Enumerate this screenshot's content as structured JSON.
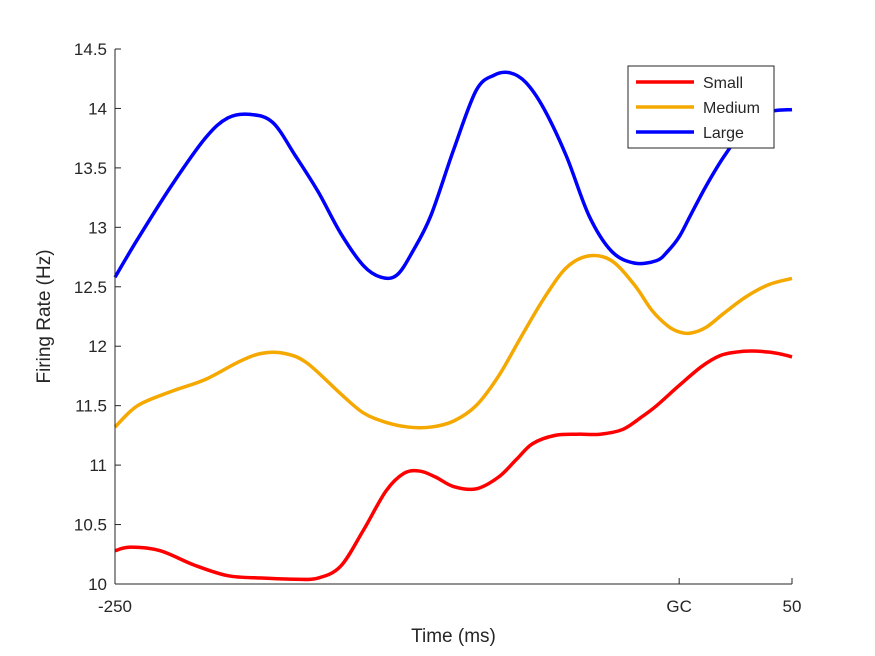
{
  "chart_data": {
    "type": "line",
    "xlabel": "Time (ms)",
    "ylabel": "Firing Rate (Hz)",
    "xlim": [
      -250,
      50
    ],
    "ylim": [
      10,
      14.5
    ],
    "xticks": [
      {
        "value": -250,
        "label": "-250"
      },
      {
        "value": 0,
        "label": "GC"
      },
      {
        "value": 50,
        "label": "50"
      }
    ],
    "yticks": [
      {
        "value": 10,
        "label": "10"
      },
      {
        "value": 10.5,
        "label": "10.5"
      },
      {
        "value": 11,
        "label": "11"
      },
      {
        "value": 11.5,
        "label": "11.5"
      },
      {
        "value": 12,
        "label": "12"
      },
      {
        "value": 12.5,
        "label": "12.5"
      },
      {
        "value": 13,
        "label": "13"
      },
      {
        "value": 13.5,
        "label": "13.5"
      },
      {
        "value": 14,
        "label": "14"
      },
      {
        "value": 14.5,
        "label": "14.5"
      }
    ],
    "grid": false,
    "legend_position": "top-right",
    "series": [
      {
        "name": "Small",
        "color": "#ff0000",
        "x": [
          -250,
          -243,
          -230,
          -215,
          -200,
          -185,
          -170,
          -160,
          -150,
          -140,
          -130,
          -122,
          -115,
          -108,
          -100,
          -90,
          -80,
          -72,
          -65,
          -55,
          -45,
          -35,
          -25,
          -17,
          -10,
          0,
          10,
          18,
          25,
          32,
          40,
          46,
          50
        ],
        "y": [
          10.28,
          10.31,
          10.28,
          10.16,
          10.07,
          10.05,
          10.04,
          10.05,
          10.15,
          10.45,
          10.78,
          10.93,
          10.95,
          10.9,
          10.82,
          10.8,
          10.9,
          11.05,
          11.18,
          11.25,
          11.26,
          11.26,
          11.3,
          11.4,
          11.5,
          11.67,
          11.83,
          11.92,
          11.95,
          11.96,
          11.95,
          11.93,
          11.91
        ]
      },
      {
        "name": "Medium",
        "color": "#f5a800",
        "x": [
          -250,
          -240,
          -225,
          -210,
          -195,
          -185,
          -175,
          -165,
          -150,
          -140,
          -130,
          -120,
          -110,
          -100,
          -90,
          -80,
          -70,
          -60,
          -50,
          -40,
          -30,
          -20,
          -12,
          -5,
          0,
          5,
          12,
          20,
          30,
          40,
          50
        ],
        "y": [
          11.32,
          11.5,
          11.62,
          11.72,
          11.87,
          11.94,
          11.94,
          11.86,
          11.6,
          11.44,
          11.36,
          11.32,
          11.32,
          11.37,
          11.5,
          11.75,
          12.08,
          12.4,
          12.66,
          12.76,
          12.72,
          12.52,
          12.3,
          12.17,
          12.12,
          12.11,
          12.16,
          12.28,
          12.42,
          12.52,
          12.57
        ]
      },
      {
        "name": "Large",
        "color": "#0000ff",
        "x": [
          -250,
          -240,
          -225,
          -210,
          -200,
          -190,
          -180,
          -170,
          -160,
          -150,
          -140,
          -132,
          -125,
          -118,
          -110,
          -100,
          -90,
          -82,
          -75,
          -68,
          -60,
          -50,
          -40,
          -30,
          -20,
          -10,
          -5,
          0,
          5,
          12,
          20,
          30,
          40,
          50
        ],
        "y": [
          12.58,
          12.9,
          13.35,
          13.75,
          13.92,
          13.95,
          13.88,
          13.6,
          13.3,
          12.95,
          12.68,
          12.58,
          12.6,
          12.8,
          13.1,
          13.65,
          14.15,
          14.28,
          14.3,
          14.22,
          14.0,
          13.6,
          13.1,
          12.8,
          12.7,
          12.72,
          12.8,
          12.92,
          13.1,
          13.35,
          13.6,
          13.85,
          13.97,
          13.99
        ]
      }
    ]
  }
}
